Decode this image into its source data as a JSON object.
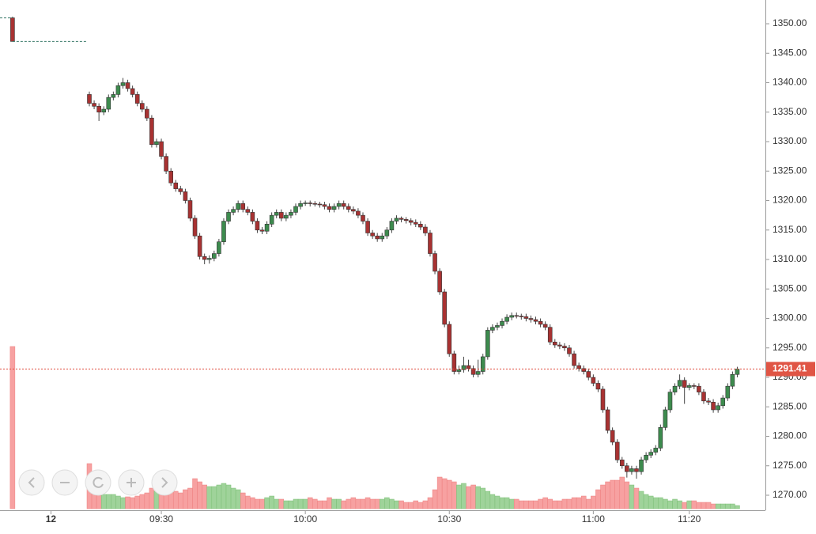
{
  "chart_data": {
    "type": "candlestick",
    "up_color": "#3d8b4e",
    "down_color": "#a83232",
    "up_volume_color": "#9fd39a",
    "down_volume_color": "#f7a1a1",
    "ylim": [
      1267.45,
      1354.03
    ],
    "yticks": [
      {
        "value": 1270,
        "label": "1270.00"
      },
      {
        "value": 1275,
        "label": "1275.00"
      },
      {
        "value": 1280,
        "label": "1280.00"
      },
      {
        "value": 1285,
        "label": "1285.00"
      },
      {
        "value": 1290,
        "label": "1290.00"
      },
      {
        "value": 1295,
        "label": "1295.00"
      },
      {
        "value": 1300,
        "label": "1300.00"
      },
      {
        "value": 1305,
        "label": "1305.00"
      },
      {
        "value": 1310,
        "label": "1310.00"
      },
      {
        "value": 1315,
        "label": "1315.00"
      },
      {
        "value": 1320,
        "label": "1320.00"
      },
      {
        "value": 1325,
        "label": "1325.00"
      },
      {
        "value": 1330,
        "label": "1330.00"
      },
      {
        "value": 1335,
        "label": "1335.00"
      },
      {
        "value": 1340,
        "label": "1340.00"
      },
      {
        "value": 1345,
        "label": "1345.00"
      },
      {
        "value": 1350,
        "label": "1350.00"
      }
    ],
    "xticks": [
      {
        "value": -8,
        "label": "12"
      },
      {
        "value": 15,
        "label": "09:30"
      },
      {
        "value": 45,
        "label": "10:00"
      },
      {
        "value": 75,
        "label": "10:30"
      },
      {
        "value": 105,
        "label": "11:00"
      },
      {
        "value": 125,
        "label": "11:20"
      }
    ],
    "last_price": 1291.41,
    "previous_candle": {
      "x": -16,
      "ohlc": [
        1351,
        1351.2,
        1347,
        1347
      ],
      "volume": 205
    },
    "candles": [
      [
        1338,
        1338.5,
        1336,
        1336.5
      ],
      [
        1336.5,
        1337,
        1335.5,
        1336
      ],
      [
        1336,
        1336.5,
        1333.5,
        1335
      ],
      [
        1335,
        1336,
        1334.5,
        1335.5
      ],
      [
        1335.5,
        1338,
        1335,
        1337.5
      ],
      [
        1337.5,
        1338.5,
        1337,
        1338
      ],
      [
        1338,
        1340,
        1337.5,
        1339.5
      ],
      [
        1339.5,
        1340.8,
        1339,
        1340
      ],
      [
        1340,
        1340.5,
        1338.5,
        1339
      ],
      [
        1339,
        1339.5,
        1337.5,
        1338
      ],
      [
        1338,
        1338.5,
        1336,
        1336.5
      ],
      [
        1336.5,
        1337,
        1335,
        1335.5
      ],
      [
        1335.5,
        1336,
        1333.5,
        1334
      ],
      [
        1334,
        1334.5,
        1329,
        1329.5
      ],
      [
        1329.5,
        1330.5,
        1329,
        1330
      ],
      [
        1330,
        1330.5,
        1327,
        1327.5
      ],
      [
        1327.5,
        1328,
        1324.5,
        1325
      ],
      [
        1325,
        1325.5,
        1322.5,
        1323
      ],
      [
        1323,
        1323.5,
        1321.5,
        1322
      ],
      [
        1322,
        1322.5,
        1321,
        1321.5
      ],
      [
        1321.5,
        1322,
        1319.5,
        1320
      ],
      [
        1320,
        1320.5,
        1316.5,
        1317
      ],
      [
        1317,
        1317.5,
        1313.5,
        1314
      ],
      [
        1314,
        1314.5,
        1310,
        1310.5
      ],
      [
        1310.5,
        1311,
        1309.2,
        1310
      ],
      [
        1310,
        1310.7,
        1309.3,
        1310.2
      ],
      [
        1310.2,
        1311.5,
        1309.7,
        1311
      ],
      [
        1311,
        1313.5,
        1310.5,
        1313
      ],
      [
        1313,
        1317,
        1312.5,
        1316.5
      ],
      [
        1316.5,
        1318.5,
        1316,
        1318
      ],
      [
        1318,
        1319,
        1317.5,
        1318.5
      ],
      [
        1318.5,
        1320,
        1318,
        1319.5
      ],
      [
        1319.5,
        1320,
        1318,
        1318.5
      ],
      [
        1318.5,
        1319,
        1317.5,
        1318
      ],
      [
        1318,
        1318.5,
        1316,
        1316.5
      ],
      [
        1316.5,
        1317,
        1314.5,
        1315
      ],
      [
        1315,
        1315.5,
        1314.3,
        1314.8
      ],
      [
        1314.8,
        1316.5,
        1314.3,
        1316
      ],
      [
        1316,
        1318,
        1315.5,
        1317.5
      ],
      [
        1317.5,
        1318.5,
        1317,
        1318
      ],
      [
        1318,
        1318.5,
        1316.5,
        1317
      ],
      [
        1317,
        1318,
        1316.5,
        1317.5
      ],
      [
        1317.5,
        1318.5,
        1317,
        1318
      ],
      [
        1318,
        1319.5,
        1317.5,
        1319
      ],
      [
        1319,
        1320,
        1318.5,
        1319.5
      ],
      [
        1319.5,
        1320,
        1319.1,
        1319.6
      ],
      [
        1319.6,
        1320,
        1319,
        1319.5
      ],
      [
        1319.5,
        1319.9,
        1319,
        1319.4
      ],
      [
        1319.4,
        1319.8,
        1318.8,
        1319.3
      ],
      [
        1319.3,
        1319.8,
        1318.5,
        1319
      ],
      [
        1319,
        1319.5,
        1318,
        1318.5
      ],
      [
        1318.5,
        1319.5,
        1318,
        1319
      ],
      [
        1319,
        1320,
        1318.5,
        1319.5
      ],
      [
        1319.5,
        1320,
        1318.5,
        1319
      ],
      [
        1319,
        1319.5,
        1318,
        1318.5
      ],
      [
        1318.5,
        1319,
        1317.7,
        1318.2
      ],
      [
        1318.2,
        1318.7,
        1317,
        1317.5
      ],
      [
        1317.5,
        1318,
        1316,
        1316.5
      ],
      [
        1316.5,
        1317,
        1314,
        1314.5
      ],
      [
        1314.5,
        1315,
        1313.5,
        1314
      ],
      [
        1314,
        1314.5,
        1313,
        1313.5
      ],
      [
        1313.5,
        1314.5,
        1313,
        1314
      ],
      [
        1314,
        1315.5,
        1313.5,
        1315
      ],
      [
        1315,
        1317,
        1314.5,
        1316.5
      ],
      [
        1316.5,
        1317.5,
        1316,
        1317
      ],
      [
        1317,
        1317.3,
        1316.3,
        1316.8
      ],
      [
        1316.8,
        1317.2,
        1316.1,
        1316.6
      ],
      [
        1316.6,
        1317,
        1315.8,
        1316.3
      ],
      [
        1316.3,
        1316.8,
        1315.5,
        1316
      ],
      [
        1316,
        1316.5,
        1315,
        1315.5
      ],
      [
        1315.5,
        1316,
        1314,
        1314.5
      ],
      [
        1314.5,
        1315,
        1310.5,
        1311
      ],
      [
        1311,
        1311.5,
        1307.5,
        1308
      ],
      [
        1308,
        1308.5,
        1304,
        1304.5
      ],
      [
        1304.5,
        1305,
        1298.5,
        1299
      ],
      [
        1299,
        1299.5,
        1293.5,
        1294
      ],
      [
        1294,
        1294.5,
        1290.5,
        1291
      ],
      [
        1291,
        1292,
        1290.5,
        1291.3
      ],
      [
        1291.3,
        1293.5,
        1290.8,
        1292
      ],
      [
        1292,
        1293,
        1291,
        1291.5
      ],
      [
        1291.5,
        1292,
        1290,
        1290.5
      ],
      [
        1290.5,
        1293,
        1290,
        1291
      ],
      [
        1291,
        1294,
        1290.5,
        1293.5
      ],
      [
        1293.5,
        1298.5,
        1293,
        1298
      ],
      [
        1298,
        1299,
        1297.5,
        1298.5
      ],
      [
        1298.5,
        1299.3,
        1298,
        1298.8
      ],
      [
        1298.8,
        1300,
        1298.3,
        1299.5
      ],
      [
        1299.5,
        1300.7,
        1299,
        1300.2
      ],
      [
        1300.2,
        1301,
        1299.7,
        1300.5
      ],
      [
        1300.5,
        1301,
        1300,
        1300.4
      ],
      [
        1300.4,
        1300.8,
        1299.8,
        1300.3
      ],
      [
        1300.3,
        1300.8,
        1299.5,
        1300
      ],
      [
        1300,
        1300.5,
        1299.3,
        1299.8
      ],
      [
        1299.8,
        1300.3,
        1299,
        1299.5
      ],
      [
        1299.5,
        1300,
        1298.5,
        1299
      ],
      [
        1299,
        1299.5,
        1298,
        1298.5
      ],
      [
        1298.5,
        1299,
        1295.5,
        1296
      ],
      [
        1296,
        1296.5,
        1295,
        1295.5
      ],
      [
        1295.5,
        1296,
        1294.8,
        1295.3
      ],
      [
        1295.3,
        1295.8,
        1294.5,
        1295
      ],
      [
        1295,
        1295.5,
        1293.5,
        1294
      ],
      [
        1294,
        1294.5,
        1291.5,
        1292
      ],
      [
        1292,
        1292.5,
        1291,
        1291.5
      ],
      [
        1291.5,
        1292,
        1290.5,
        1291
      ],
      [
        1291,
        1291.5,
        1289.5,
        1290
      ],
      [
        1290,
        1290.5,
        1288.5,
        1289
      ],
      [
        1289,
        1289.5,
        1287.5,
        1288
      ],
      [
        1288,
        1288.5,
        1284,
        1284.5
      ],
      [
        1284.5,
        1285,
        1280.5,
        1281
      ],
      [
        1281,
        1281.5,
        1278.5,
        1279
      ],
      [
        1279,
        1279.5,
        1275.5,
        1276
      ],
      [
        1276,
        1276.5,
        1274.5,
        1275
      ],
      [
        1275,
        1275.5,
        1273,
        1274
      ],
      [
        1274,
        1275,
        1273.5,
        1274.5
      ],
      [
        1274.5,
        1275,
        1272.8,
        1274
      ],
      [
        1274,
        1276.5,
        1273.5,
        1276
      ],
      [
        1276,
        1277.3,
        1275.5,
        1276.8
      ],
      [
        1276.8,
        1277.8,
        1276.3,
        1277.3
      ],
      [
        1277.3,
        1278.5,
        1276.8,
        1278
      ],
      [
        1278,
        1282,
        1277.5,
        1281.5
      ],
      [
        1281.5,
        1285,
        1281,
        1284.5
      ],
      [
        1284.5,
        1288,
        1284,
        1287.5
      ],
      [
        1287.5,
        1289,
        1287,
        1288.5
      ],
      [
        1288.5,
        1290.5,
        1288,
        1289.5
      ],
      [
        1289.5,
        1290,
        1285.5,
        1288.3
      ],
      [
        1288.3,
        1289,
        1287.8,
        1288.6
      ],
      [
        1288.6,
        1289,
        1288,
        1288.5
      ],
      [
        1288.5,
        1289,
        1287,
        1287.5
      ],
      [
        1287.5,
        1288,
        1285.5,
        1286
      ],
      [
        1286,
        1286.5,
        1285.3,
        1285.8
      ],
      [
        1285.8,
        1286.3,
        1284,
        1284.5
      ],
      [
        1284.5,
        1285.7,
        1284,
        1285.2
      ],
      [
        1285.2,
        1287,
        1284.7,
        1286.5
      ],
      [
        1286.5,
        1289,
        1286,
        1288.5
      ],
      [
        1288.5,
        1291,
        1288,
        1290.5
      ],
      [
        1290.5,
        1291.8,
        1290,
        1291.41
      ]
    ],
    "volume": [
      57,
      20,
      17,
      18,
      18,
      18,
      16,
      14,
      15,
      14,
      16,
      18,
      20,
      26,
      22,
      24,
      28,
      24,
      22,
      20,
      24,
      26,
      38,
      34,
      30,
      28,
      28,
      30,
      32,
      30,
      26,
      24,
      20,
      16,
      14,
      12,
      12,
      14,
      16,
      12,
      12,
      10,
      10,
      12,
      12,
      12,
      14,
      12,
      10,
      10,
      14,
      12,
      12,
      10,
      12,
      14,
      12,
      12,
      14,
      12,
      12,
      12,
      14,
      12,
      10,
      10,
      8,
      8,
      10,
      8,
      10,
      14,
      24,
      40,
      38,
      36,
      34,
      30,
      32,
      28,
      30,
      28,
      26,
      22,
      18,
      16,
      14,
      14,
      12,
      12,
      10,
      10,
      10,
      10,
      12,
      14,
      12,
      10,
      10,
      12,
      12,
      14,
      14,
      16,
      12,
      16,
      24,
      30,
      34,
      36,
      36,
      40,
      34,
      30,
      26,
      22,
      18,
      16,
      14,
      14,
      12,
      10,
      12,
      10,
      8,
      10,
      10,
      8,
      8,
      8,
      6,
      6,
      6,
      6,
      6,
      4
    ]
  }
}
